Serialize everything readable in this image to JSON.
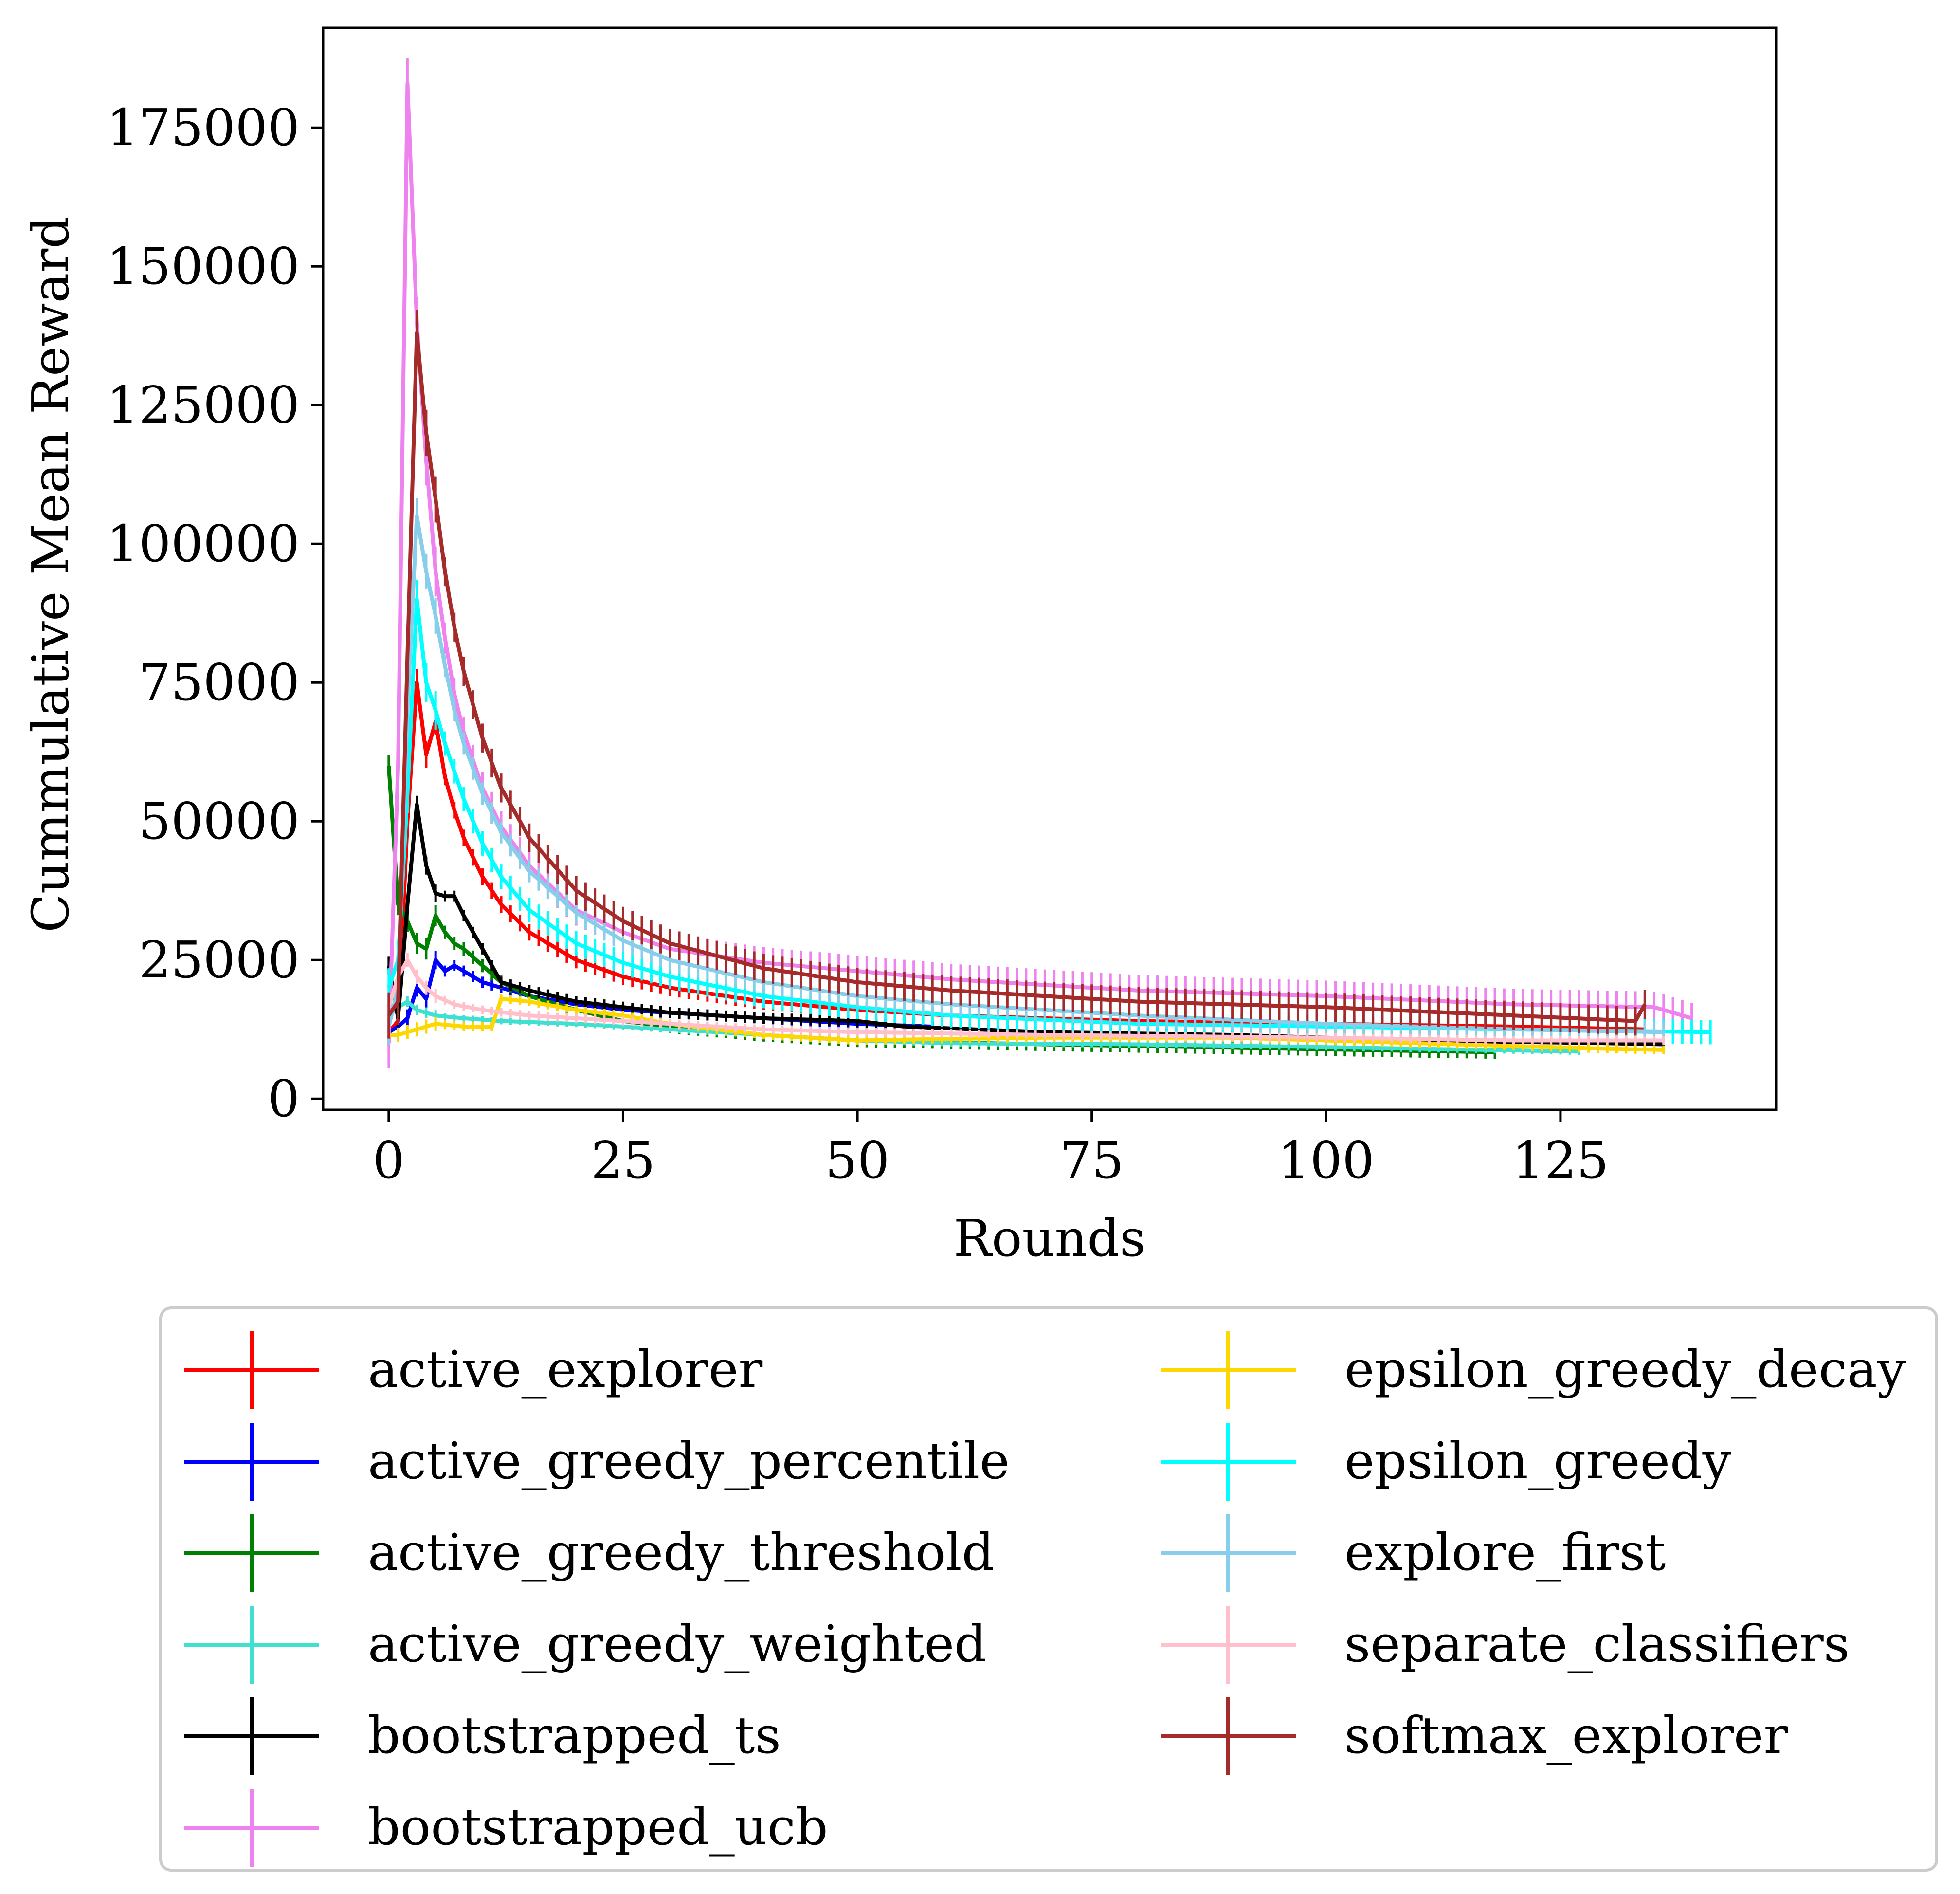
{
  "chart_data": {
    "type": "line",
    "title": "",
    "xlabel": "Rounds",
    "ylabel": "Cummulative Mean Reward",
    "xlim": [
      -7,
      148
    ],
    "ylim": [
      -2000,
      193000
    ],
    "xticks": [
      0,
      25,
      50,
      75,
      100,
      125
    ],
    "xtick_labels": [
      "0",
      "25",
      "50",
      "75",
      "100",
      "125"
    ],
    "yticks": [
      0,
      25000,
      50000,
      75000,
      100000,
      125000,
      150000,
      175000
    ],
    "ytick_labels": [
      "0",
      "25000",
      "50000",
      "75000",
      "100000",
      "125000",
      "150000",
      "175000"
    ],
    "grid": false,
    "legend_placement": "below plot, two columns",
    "error_bars": true,
    "series": [
      {
        "name": "active_explorer",
        "color": "#ff0000",
        "n_rounds": 134,
        "errbar": 1500,
        "points": [
          [
            0,
            12000
          ],
          [
            1,
            14000
          ],
          [
            2,
            50000
          ],
          [
            3,
            75000
          ],
          [
            4,
            62000
          ],
          [
            5,
            68000
          ],
          [
            6,
            58000
          ],
          [
            7,
            52000
          ],
          [
            8,
            47000
          ],
          [
            10,
            40000
          ],
          [
            12,
            35000
          ],
          [
            15,
            30000
          ],
          [
            20,
            25000
          ],
          [
            25,
            22000
          ],
          [
            30,
            20000
          ],
          [
            40,
            17500
          ],
          [
            50,
            16000
          ],
          [
            60,
            15000
          ],
          [
            80,
            14000
          ],
          [
            100,
            13500
          ],
          [
            120,
            13000
          ],
          [
            134,
            12500
          ]
        ]
      },
      {
        "name": "active_greedy_percentile",
        "color": "#0000ff",
        "n_rounds": 58,
        "errbar": 1000,
        "points": [
          [
            0,
            12000
          ],
          [
            1,
            13000
          ],
          [
            2,
            14500
          ],
          [
            3,
            20000
          ],
          [
            4,
            18000
          ],
          [
            5,
            25000
          ],
          [
            6,
            23000
          ],
          [
            7,
            24000
          ],
          [
            8,
            23000
          ],
          [
            10,
            21000
          ],
          [
            12,
            20000
          ],
          [
            15,
            18500
          ],
          [
            20,
            17000
          ],
          [
            25,
            16000
          ],
          [
            30,
            15500
          ],
          [
            40,
            14500
          ],
          [
            50,
            13500
          ],
          [
            58,
            13000
          ]
        ]
      },
      {
        "name": "active_greedy_threshold",
        "color": "#008000",
        "n_rounds": 118,
        "errbar": 1200,
        "points": [
          [
            0,
            60000
          ],
          [
            1,
            35000
          ],
          [
            2,
            32000
          ],
          [
            3,
            28000
          ],
          [
            4,
            27000
          ],
          [
            5,
            33000
          ],
          [
            6,
            30000
          ],
          [
            7,
            28000
          ],
          [
            8,
            27000
          ],
          [
            10,
            24000
          ],
          [
            12,
            21000
          ],
          [
            15,
            18500
          ],
          [
            20,
            16000
          ],
          [
            25,
            14000
          ],
          [
            30,
            13000
          ],
          [
            40,
            11500
          ],
          [
            50,
            10500
          ],
          [
            70,
            9800
          ],
          [
            90,
            9200
          ],
          [
            110,
            8600
          ],
          [
            118,
            8400
          ]
        ]
      },
      {
        "name": "active_greedy_weighted",
        "color": "#40e0d0",
        "n_rounds": 127,
        "errbar": 600,
        "points": [
          [
            0,
            15000
          ],
          [
            1,
            16500
          ],
          [
            2,
            17500
          ],
          [
            3,
            16000
          ],
          [
            4,
            15500
          ],
          [
            5,
            15000
          ],
          [
            8,
            14500
          ],
          [
            12,
            14000
          ],
          [
            20,
            13500
          ],
          [
            30,
            12500
          ],
          [
            40,
            11500
          ],
          [
            50,
            10500
          ],
          [
            60,
            10000
          ],
          [
            80,
            9800
          ],
          [
            100,
            9300
          ],
          [
            127,
            8500
          ]
        ]
      },
      {
        "name": "bootstrapped_ts",
        "color": "#000000",
        "n_rounds": 136,
        "errbar": 1000,
        "points": [
          [
            0,
            24000
          ],
          [
            1,
            14500
          ],
          [
            2,
            35000
          ],
          [
            3,
            53000
          ],
          [
            4,
            42000
          ],
          [
            5,
            37000
          ],
          [
            6,
            36500
          ],
          [
            7,
            36500
          ],
          [
            8,
            33000
          ],
          [
            10,
            27000
          ],
          [
            12,
            21000
          ],
          [
            15,
            19500
          ],
          [
            20,
            17500
          ],
          [
            25,
            16500
          ],
          [
            30,
            15500
          ],
          [
            40,
            14500
          ],
          [
            50,
            14000
          ],
          [
            55,
            13000
          ],
          [
            70,
            12000
          ],
          [
            90,
            11500
          ],
          [
            110,
            10500
          ],
          [
            130,
            10000
          ],
          [
            136,
            9800
          ]
        ]
      },
      {
        "name": "bootstrapped_ucb",
        "color": "#ee82ee",
        "n_rounds": 139,
        "errbar": 2800,
        "points": [
          [
            0,
            10000
          ],
          [
            1,
            60000
          ],
          [
            2,
            183000
          ],
          [
            3,
            140000
          ],
          [
            4,
            115000
          ],
          [
            5,
            95000
          ],
          [
            6,
            83000
          ],
          [
            7,
            73000
          ],
          [
            8,
            66000
          ],
          [
            10,
            56000
          ],
          [
            12,
            49000
          ],
          [
            15,
            42000
          ],
          [
            20,
            34000
          ],
          [
            25,
            30000
          ],
          [
            30,
            27000
          ],
          [
            40,
            24500
          ],
          [
            50,
            23000
          ],
          [
            60,
            21500
          ],
          [
            80,
            19500
          ],
          [
            100,
            18500
          ],
          [
            120,
            17000
          ],
          [
            135,
            16500
          ],
          [
            139,
            14500
          ]
        ]
      },
      {
        "name": "epsilon_greedy_decay",
        "color": "#ffd700",
        "n_rounds": 136,
        "errbar": 800,
        "points": [
          [
            0,
            11500
          ],
          [
            1,
            11500
          ],
          [
            2,
            12000
          ],
          [
            3,
            12500
          ],
          [
            4,
            13000
          ],
          [
            5,
            13500
          ],
          [
            8,
            13000
          ],
          [
            11,
            13000
          ],
          [
            12,
            18000
          ],
          [
            15,
            17500
          ],
          [
            20,
            16000
          ],
          [
            25,
            15000
          ],
          [
            30,
            13500
          ],
          [
            40,
            11500
          ],
          [
            50,
            10500
          ],
          [
            60,
            10800
          ],
          [
            70,
            11000
          ],
          [
            90,
            11000
          ],
          [
            110,
            10000
          ],
          [
            130,
            9000
          ],
          [
            136,
            8800
          ]
        ]
      },
      {
        "name": "epsilon_greedy",
        "color": "#00ffff",
        "n_rounds": 141,
        "errbar": 2200,
        "points": [
          [
            0,
            20000
          ],
          [
            1,
            25000
          ],
          [
            2,
            55000
          ],
          [
            3,
            90000
          ],
          [
            4,
            75000
          ],
          [
            5,
            70000
          ],
          [
            6,
            64000
          ],
          [
            7,
            59000
          ],
          [
            8,
            54000
          ],
          [
            10,
            46000
          ],
          [
            12,
            40000
          ],
          [
            15,
            34000
          ],
          [
            20,
            28000
          ],
          [
            25,
            24500
          ],
          [
            30,
            22000
          ],
          [
            40,
            18500
          ],
          [
            50,
            16500
          ],
          [
            60,
            15000
          ],
          [
            80,
            13500
          ],
          [
            100,
            13000
          ],
          [
            120,
            12500
          ],
          [
            141,
            12000
          ]
        ]
      },
      {
        "name": "explore_first",
        "color": "#87ceeb",
        "n_rounds": 136,
        "errbar": 2000,
        "points": [
          [
            0,
            13000
          ],
          [
            1,
            20000
          ],
          [
            2,
            70000
          ],
          [
            3,
            105000
          ],
          [
            4,
            95000
          ],
          [
            5,
            87000
          ],
          [
            6,
            78000
          ],
          [
            7,
            70000
          ],
          [
            8,
            64000
          ],
          [
            10,
            55000
          ],
          [
            12,
            48000
          ],
          [
            15,
            41000
          ],
          [
            20,
            33500
          ],
          [
            25,
            28500
          ],
          [
            30,
            25000
          ],
          [
            40,
            21000
          ],
          [
            50,
            18500
          ],
          [
            60,
            17000
          ],
          [
            80,
            15000
          ],
          [
            100,
            13500
          ],
          [
            120,
            12500
          ],
          [
            136,
            12000
          ]
        ]
      },
      {
        "name": "separate_classifiers",
        "color": "#ffc0cb",
        "n_rounds": 136,
        "errbar": 800,
        "points": [
          [
            0,
            16500
          ],
          [
            1,
            22000
          ],
          [
            2,
            25000
          ],
          [
            3,
            22000
          ],
          [
            4,
            20000
          ],
          [
            5,
            18500
          ],
          [
            7,
            17000
          ],
          [
            10,
            16000
          ],
          [
            15,
            15000
          ],
          [
            20,
            14500
          ],
          [
            30,
            13500
          ],
          [
            40,
            12500
          ],
          [
            50,
            12000
          ],
          [
            70,
            11500
          ],
          [
            100,
            11000
          ],
          [
            120,
            10500
          ],
          [
            136,
            10500
          ]
        ]
      },
      {
        "name": "softmax_explorer",
        "color": "#a52a2a",
        "n_rounds": 134,
        "errbar": 2600,
        "points": [
          [
            0,
            15000
          ],
          [
            1,
            17500
          ],
          [
            2,
            80000
          ],
          [
            3,
            138000
          ],
          [
            4,
            120000
          ],
          [
            5,
            108000
          ],
          [
            6,
            95000
          ],
          [
            7,
            85000
          ],
          [
            8,
            77000
          ],
          [
            10,
            65000
          ],
          [
            12,
            56000
          ],
          [
            15,
            47000
          ],
          [
            20,
            37500
          ],
          [
            25,
            32000
          ],
          [
            30,
            28000
          ],
          [
            40,
            23500
          ],
          [
            50,
            21000
          ],
          [
            60,
            19500
          ],
          [
            80,
            17500
          ],
          [
            100,
            16500
          ],
          [
            120,
            15000
          ],
          [
            133,
            14000
          ],
          [
            134,
            17000
          ]
        ]
      }
    ]
  }
}
